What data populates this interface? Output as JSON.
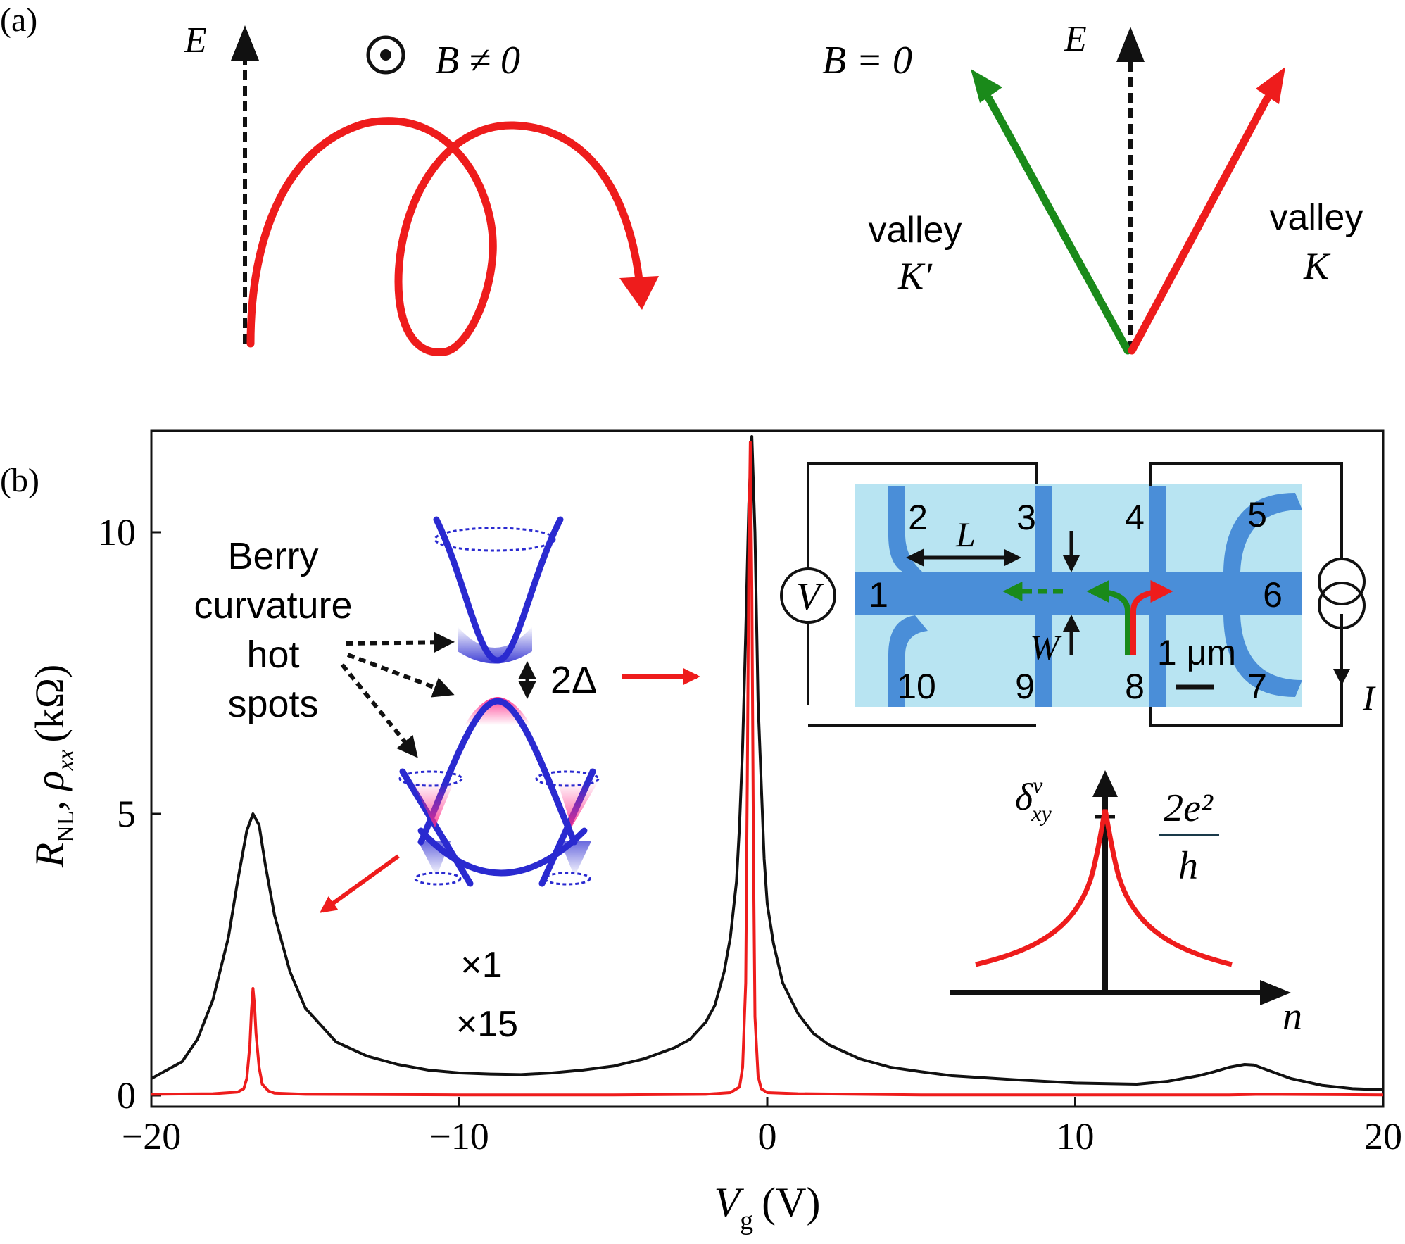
{
  "panel_a": {
    "label": "(a)",
    "left": {
      "energy_axis": "E",
      "field_symbol": "⊙",
      "field_label": "B ≠ 0",
      "trajectory_color": "#ee1c1c",
      "axis_color": "#111111"
    },
    "right": {
      "energy_axis": "E",
      "field_label": "B = 0",
      "valley_kprime_word": "valley",
      "valley_kprime_name": "K′",
      "valley_k_word": "valley",
      "valley_k_name": "K",
      "kprime_color": "#1a8a1a",
      "k_color": "#ee1c1c"
    }
  },
  "panel_b": {
    "label": "(b)",
    "annotations": {
      "berry_line1": "Berry",
      "berry_line2": "curvature",
      "berry_line3": "hot",
      "berry_line4": "spots",
      "gap": "2Δ",
      "mult_black": "×1",
      "mult_red": "×15",
      "band_color": "#2a2ad0",
      "hotspot_color": "#ff2d8a"
    },
    "device_inset": {
      "voltmeter": "V",
      "current_label": "I",
      "length_label": "L",
      "width_label": "W",
      "scale_bar": "1 μm",
      "terminals": [
        "1",
        "2",
        "3",
        "4",
        "5",
        "6",
        "7",
        "8",
        "9",
        "10"
      ],
      "substrate_color": "#b8e4f2",
      "channel_color": "#4a8ed8"
    },
    "hall_inset": {
      "y_symbol": "δ",
      "y_sup": "v",
      "y_sub": "xy",
      "quantum_numerator": "2e²",
      "quantum_denominator": "h",
      "x_label": "n"
    }
  },
  "chart_data": {
    "type": "line",
    "title": "",
    "xlabel": "V",
    "xlabel_sub": "g",
    "xlabel_unit": "(V)",
    "ylabel": "R",
    "ylabel_sub1": "NL",
    "ylabel_mid": ", ρ",
    "ylabel_sub2": "xx",
    "ylabel_unit": "(kΩ)",
    "xlim": [
      -20,
      20
    ],
    "ylim": [
      -0.2,
      11.8
    ],
    "xticks": [
      -20,
      -10,
      0,
      10,
      20
    ],
    "xtick_labels": [
      "−20",
      "−10",
      "0",
      "10",
      "20"
    ],
    "yticks": [
      0,
      5,
      10
    ],
    "ytick_labels": [
      "0",
      "5",
      "10"
    ],
    "series": [
      {
        "name": "ρxx (×1)",
        "color": "#111111",
        "x": [
          -20,
          -19,
          -18.5,
          -18,
          -17.5,
          -17.2,
          -16.9,
          -16.7,
          -16.5,
          -16.3,
          -16,
          -15.5,
          -15,
          -14,
          -13,
          -12,
          -11,
          -10,
          -9,
          -8,
          -7,
          -6,
          -5,
          -4,
          -3,
          -2.5,
          -2,
          -1.7,
          -1.4,
          -1.2,
          -1.0,
          -0.9,
          -0.8,
          -0.7,
          -0.6,
          -0.5,
          -0.4,
          -0.3,
          -0.1,
          0,
          0.2,
          0.5,
          1,
          1.5,
          2,
          3,
          4,
          5,
          6,
          8,
          10,
          12,
          13,
          14,
          14.5,
          15,
          15.5,
          15.8,
          16.2,
          16.5,
          17,
          18,
          19,
          20
        ],
        "y": [
          0.3,
          0.6,
          1.0,
          1.7,
          2.8,
          3.8,
          4.7,
          5.0,
          4.8,
          4.1,
          3.2,
          2.2,
          1.55,
          0.95,
          0.7,
          0.55,
          0.45,
          0.4,
          0.38,
          0.37,
          0.4,
          0.45,
          0.52,
          0.65,
          0.85,
          1.0,
          1.3,
          1.6,
          2.2,
          2.8,
          3.8,
          4.8,
          6.2,
          8.2,
          10.5,
          11.7,
          10.0,
          7.0,
          4.2,
          3.4,
          2.7,
          2.0,
          1.45,
          1.1,
          0.9,
          0.65,
          0.5,
          0.42,
          0.35,
          0.28,
          0.22,
          0.2,
          0.25,
          0.35,
          0.42,
          0.5,
          0.55,
          0.54,
          0.46,
          0.4,
          0.3,
          0.18,
          0.12,
          0.1
        ]
      },
      {
        "name": "R_NL (×15)",
        "color": "#ee1c1c",
        "x": [
          -20,
          -18,
          -17.2,
          -17,
          -16.9,
          -16.8,
          -16.75,
          -16.7,
          -16.65,
          -16.6,
          -16.5,
          -16.4,
          -16.2,
          -16,
          -15,
          -10,
          -5,
          -2,
          -1.2,
          -0.9,
          -0.8,
          -0.7,
          -0.65,
          -0.6,
          -0.55,
          -0.5,
          -0.45,
          -0.4,
          -0.3,
          -0.2,
          0,
          1,
          5,
          10,
          15,
          16,
          20
        ],
        "y": [
          0.02,
          0.03,
          0.06,
          0.12,
          0.3,
          0.9,
          1.5,
          1.9,
          1.6,
          1.1,
          0.5,
          0.2,
          0.08,
          0.04,
          0.02,
          0.01,
          0.01,
          0.02,
          0.05,
          0.15,
          0.5,
          2.0,
          5.5,
          9.5,
          11.6,
          9.0,
          4.5,
          1.4,
          0.35,
          0.12,
          0.05,
          0.03,
          0.01,
          0.01,
          0.01,
          0.02,
          0.01
        ]
      }
    ]
  }
}
